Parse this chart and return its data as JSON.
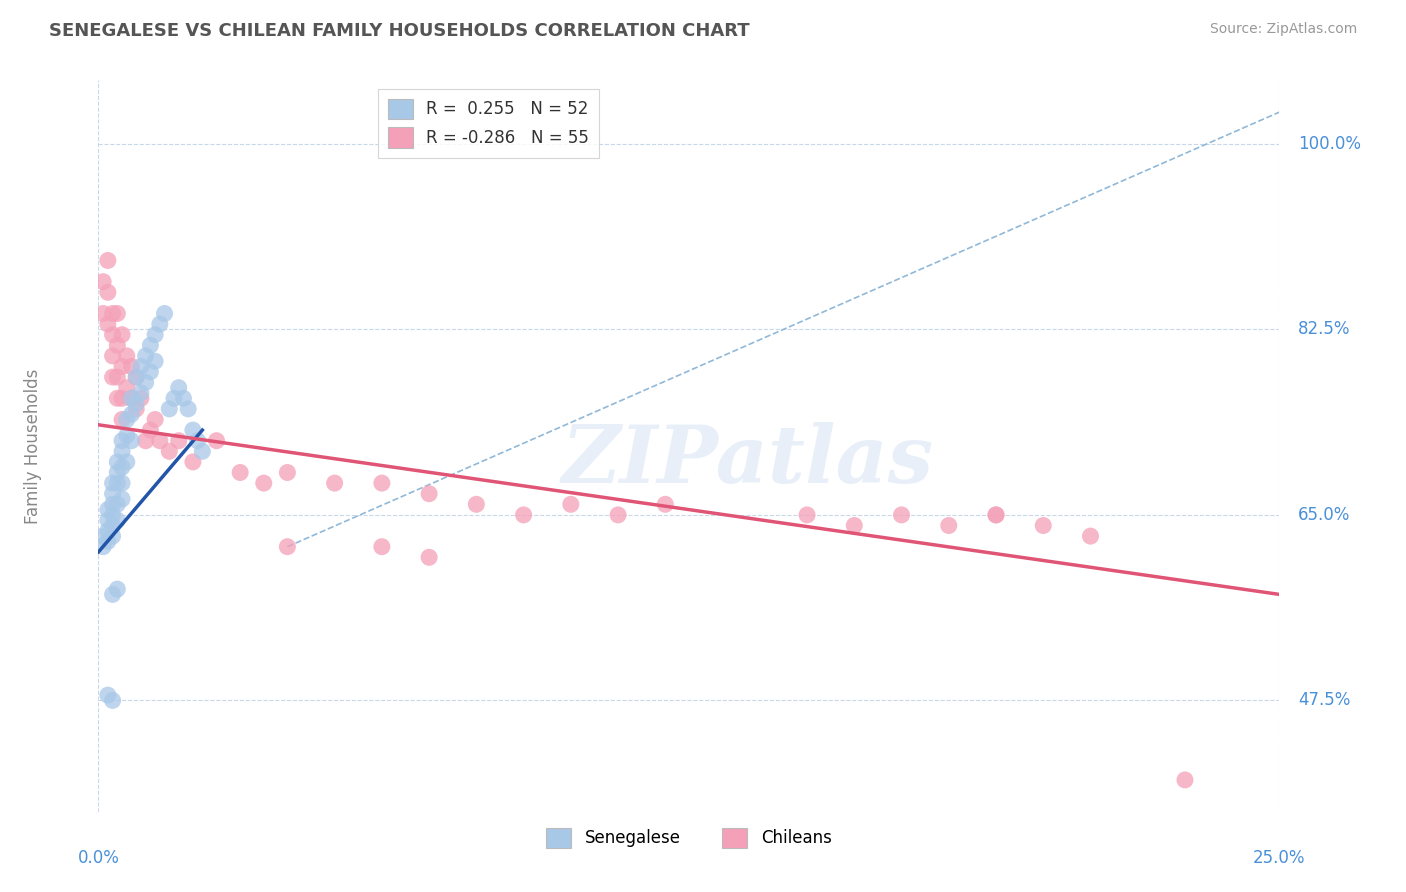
{
  "title": "SENEGALESE VS CHILEAN FAMILY HOUSEHOLDS CORRELATION CHART",
  "source": "Source: ZipAtlas.com",
  "ylabel": "Family Households",
  "y_tick_positions": [
    0.475,
    0.65,
    0.825,
    1.0
  ],
  "y_tick_labels": [
    "47.5%",
    "65.0%",
    "82.5%",
    "100.0%"
  ],
  "x_range": [
    0.0,
    0.25
  ],
  "y_range": [
    0.37,
    1.06
  ],
  "senegalese_color": "#a8c8e8",
  "chilean_color": "#f4a0b8",
  "senegalese_line_color": "#2255aa",
  "chilean_line_color": "#e05575",
  "dashed_line_color": "#90b8d8",
  "watermark": "ZIPatlas",
  "background_color": "#ffffff",
  "grid_color": "#c8d8e8",
  "title_color": "#555555",
  "axis_label_color": "#4a90d9",
  "legend_labels": [
    "R =  0.255   N = 52",
    "R = -0.286   N = 55"
  ],
  "bottom_labels": [
    "Senegalese",
    "Chileans"
  ],
  "senegalese_x": [
    0.001,
    0.001,
    0.002,
    0.002,
    0.002,
    0.002,
    0.003,
    0.003,
    0.003,
    0.003,
    0.003,
    0.003,
    0.004,
    0.004,
    0.004,
    0.004,
    0.004,
    0.005,
    0.005,
    0.005,
    0.005,
    0.005,
    0.006,
    0.006,
    0.006,
    0.007,
    0.007,
    0.007,
    0.008,
    0.008,
    0.009,
    0.009,
    0.01,
    0.01,
    0.011,
    0.011,
    0.012,
    0.012,
    0.013,
    0.014,
    0.015,
    0.016,
    0.017,
    0.018,
    0.019,
    0.02,
    0.021,
    0.022,
    0.003,
    0.004,
    0.002,
    0.003
  ],
  "senegalese_y": [
    0.63,
    0.62,
    0.655,
    0.645,
    0.635,
    0.625,
    0.68,
    0.67,
    0.66,
    0.65,
    0.64,
    0.63,
    0.7,
    0.69,
    0.68,
    0.66,
    0.645,
    0.72,
    0.71,
    0.695,
    0.68,
    0.665,
    0.74,
    0.725,
    0.7,
    0.76,
    0.745,
    0.72,
    0.78,
    0.755,
    0.79,
    0.765,
    0.8,
    0.775,
    0.81,
    0.785,
    0.82,
    0.795,
    0.83,
    0.84,
    0.75,
    0.76,
    0.77,
    0.76,
    0.75,
    0.73,
    0.72,
    0.71,
    0.575,
    0.58,
    0.48,
    0.475
  ],
  "chilean_x": [
    0.001,
    0.001,
    0.002,
    0.002,
    0.002,
    0.003,
    0.003,
    0.003,
    0.003,
    0.004,
    0.004,
    0.004,
    0.004,
    0.005,
    0.005,
    0.005,
    0.005,
    0.006,
    0.006,
    0.007,
    0.007,
    0.008,
    0.008,
    0.009,
    0.01,
    0.011,
    0.012,
    0.013,
    0.015,
    0.017,
    0.02,
    0.025,
    0.03,
    0.035,
    0.04,
    0.05,
    0.06,
    0.07,
    0.08,
    0.09,
    0.1,
    0.11,
    0.12,
    0.15,
    0.16,
    0.17,
    0.18,
    0.19,
    0.2,
    0.21,
    0.04,
    0.06,
    0.07,
    0.19,
    0.23
  ],
  "chilean_y": [
    0.87,
    0.84,
    0.89,
    0.86,
    0.83,
    0.84,
    0.82,
    0.8,
    0.78,
    0.84,
    0.81,
    0.78,
    0.76,
    0.82,
    0.79,
    0.76,
    0.74,
    0.8,
    0.77,
    0.79,
    0.76,
    0.78,
    0.75,
    0.76,
    0.72,
    0.73,
    0.74,
    0.72,
    0.71,
    0.72,
    0.7,
    0.72,
    0.69,
    0.68,
    0.69,
    0.68,
    0.68,
    0.67,
    0.66,
    0.65,
    0.66,
    0.65,
    0.66,
    0.65,
    0.64,
    0.65,
    0.64,
    0.65,
    0.64,
    0.63,
    0.62,
    0.62,
    0.61,
    0.65,
    0.4
  ],
  "sen_line_x": [
    0.0,
    0.022
  ],
  "sen_line_y": [
    0.615,
    0.73
  ],
  "chi_line_x": [
    0.0,
    0.25
  ],
  "chi_line_y": [
    0.735,
    0.575
  ],
  "dash_line_x": [
    0.04,
    0.25
  ],
  "dash_line_y": [
    0.62,
    1.03
  ]
}
